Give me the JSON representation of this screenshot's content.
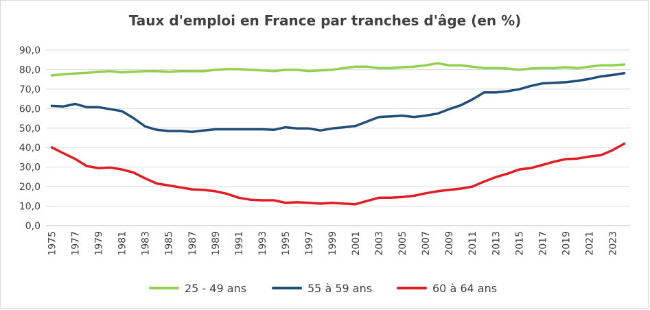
{
  "chart_data": {
    "type": "line",
    "title": "Taux d'emploi en France par tranches d'âge (en %)",
    "xlabel": "",
    "ylabel": "",
    "ylim": [
      0,
      90
    ],
    "yticks": [
      "0,0",
      "10,0",
      "20,0",
      "30,0",
      "40,0",
      "50,0",
      "60,0",
      "70,0",
      "80,0",
      "90,0"
    ],
    "x": [
      1975,
      1976,
      1977,
      1978,
      1979,
      1980,
      1981,
      1982,
      1983,
      1984,
      1985,
      1986,
      1987,
      1988,
      1989,
      1990,
      1991,
      1992,
      1993,
      1994,
      1995,
      1996,
      1997,
      1998,
      1999,
      2000,
      2001,
      2002,
      2003,
      2004,
      2005,
      2006,
      2007,
      2008,
      2009,
      2010,
      2011,
      2012,
      2013,
      2014,
      2015,
      2016,
      2017,
      2018,
      2019,
      2020,
      2021,
      2022,
      2023,
      2024
    ],
    "xtick_labels": [
      "1975",
      "1977",
      "1979",
      "1981",
      "1983",
      "1985",
      "1987",
      "1989",
      "1991",
      "1993",
      "1995",
      "1997",
      "1999",
      "2001",
      "2003",
      "2005",
      "2007",
      "2009",
      "2011",
      "2013",
      "2015",
      "2017",
      "2019",
      "2021",
      "2023"
    ],
    "grid": true,
    "legend_position": "bottom",
    "series": [
      {
        "name": "25 - 49 ans",
        "color": "#92d050",
        "values": [
          77.0,
          77.6,
          78.0,
          78.3,
          78.9,
          79.2,
          78.6,
          78.9,
          79.2,
          79.2,
          78.9,
          79.2,
          79.2,
          79.2,
          79.9,
          80.2,
          80.2,
          79.9,
          79.6,
          79.2,
          79.9,
          79.9,
          79.2,
          79.6,
          79.9,
          80.8,
          81.5,
          81.5,
          80.8,
          80.8,
          81.2,
          81.5,
          82.2,
          83.2,
          82.2,
          82.2,
          81.5,
          80.8,
          80.8,
          80.5,
          79.9,
          80.5,
          80.8,
          80.8,
          81.2,
          80.8,
          81.5,
          82.2,
          82.2,
          82.6
        ]
      },
      {
        "name": "55 à 59 ans",
        "color": "#1f4e79",
        "values": [
          61.4,
          61.1,
          62.4,
          60.7,
          60.7,
          59.7,
          58.7,
          55.1,
          50.8,
          49.1,
          48.5,
          48.5,
          48.1,
          48.8,
          49.4,
          49.4,
          49.4,
          49.4,
          49.4,
          49.1,
          50.4,
          49.8,
          49.8,
          48.8,
          49.8,
          50.4,
          51.1,
          53.4,
          55.7,
          56.0,
          56.4,
          55.7,
          56.4,
          57.4,
          59.7,
          61.7,
          64.7,
          68.3,
          68.3,
          68.9,
          69.9,
          71.6,
          72.9,
          73.2,
          73.5,
          74.2,
          75.2,
          76.5,
          77.2,
          78.2
        ]
      },
      {
        "name": "60 à 64 ans",
        "color": "#e31b23",
        "values": [
          40.1,
          37.1,
          34.2,
          30.5,
          29.5,
          29.8,
          28.8,
          27.2,
          24.2,
          21.6,
          20.6,
          19.6,
          18.6,
          18.3,
          17.6,
          16.3,
          14.3,
          13.3,
          13.0,
          13.0,
          11.7,
          12.0,
          11.7,
          11.3,
          11.7,
          11.3,
          11.0,
          12.7,
          14.3,
          14.3,
          14.7,
          15.3,
          16.6,
          17.6,
          18.3,
          19.0,
          20.0,
          22.6,
          24.9,
          26.6,
          28.8,
          29.5,
          31.1,
          32.8,
          34.1,
          34.4,
          35.4,
          36.1,
          38.7,
          42.0
        ]
      }
    ]
  }
}
